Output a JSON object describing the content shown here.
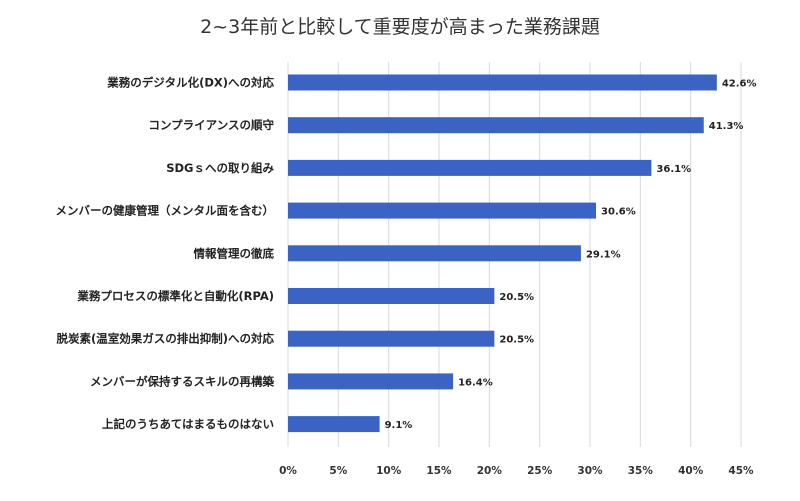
{
  "chart_data": {
    "type": "bar",
    "orientation": "horizontal",
    "title": "2~3年前と比較して重要度が高まった業務課題",
    "categories": [
      "業務のデジタル化(DX)への対応",
      "コンプライアンスの順守",
      "SDGｓへの取り組み",
      "メンバーの健康管理（メンタル面を含む）",
      "情報管理の徹底",
      "業務プロセスの標準化と自動化(RPA)",
      "脱炭素(温室効果ガスの排出抑制)への対応",
      "メンバーが保持するスキルの再構築",
      "上記のうちあてはまるものはない"
    ],
    "values": [
      42.6,
      41.3,
      36.1,
      30.6,
      29.1,
      20.5,
      20.5,
      16.4,
      9.1
    ],
    "value_labels": [
      "42.6%",
      "41.3%",
      "36.1%",
      "30.6%",
      "29.1%",
      "20.5%",
      "20.5%",
      "16.4%",
      "9.1%"
    ],
    "xlim": [
      0,
      45
    ],
    "x_ticks": [
      "0%",
      "5%",
      "10%",
      "15%",
      "20%",
      "25%",
      "30%",
      "35%",
      "40%",
      "45%"
    ],
    "grid": "vertical",
    "legend": "none",
    "bar_color": "#3a63c4",
    "grid_color": "#d9d9d9"
  }
}
